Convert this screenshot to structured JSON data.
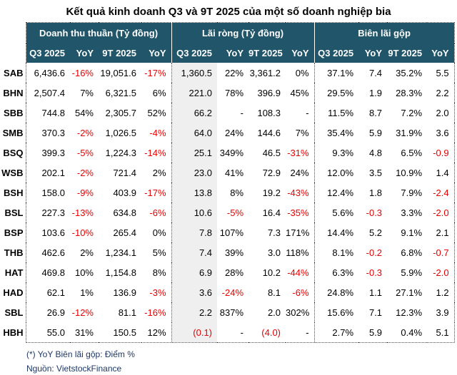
{
  "title": "Kết quả kinh doanh Q3 và 9T 2025 của một số doanh nghiệp bia",
  "footnote": "(*) YoY Biên lãi gộp: Điểm %",
  "source": "Nguồn: VietstockFinance",
  "colors": {
    "header_bg": "#215569",
    "header_text": "#ffffff",
    "negative_text": "#e80000",
    "shaded_column_bg": "#efefef",
    "footer_text": "#1f3864",
    "border_dotted": "#4a4a4a"
  },
  "chart_data": {
    "type": "table",
    "title": "Kết quả kinh doanh Q3 và 9T 2025 của một số doanh nghiệp bia",
    "column_groups": [
      {
        "label": "Doanh thu thuần (Tỷ đồng)"
      },
      {
        "label": "Lãi ròng (Tỷ đồng)"
      },
      {
        "label": "Biên lãi gộp"
      }
    ],
    "sub_columns": [
      "Q3 2025",
      "YoY",
      "9T 2025",
      "YoY"
    ],
    "rows": [
      {
        "ticker": "SAB",
        "cells": [
          "6,436.6",
          "-16%",
          "19,051.6",
          "-17%",
          "1,360.5",
          "22%",
          "3,361.2",
          "0%",
          "37.1%",
          "7.4",
          "35.2%",
          "5.5"
        ]
      },
      {
        "ticker": "BHN",
        "cells": [
          "2,507.4",
          "7%",
          "6,321.5",
          "6%",
          "221.0",
          "78%",
          "396.9",
          "45%",
          "29.5%",
          "1.9",
          "28.3%",
          "2.2"
        ]
      },
      {
        "ticker": "SBB",
        "cells": [
          "744.8",
          "54%",
          "2,305.7",
          "52%",
          "66.2",
          "-",
          "108.3",
          "-",
          "11.5%",
          "8.7",
          "7.2%",
          "2.0"
        ]
      },
      {
        "ticker": "SMB",
        "cells": [
          "370.3",
          "-2%",
          "1,026.5",
          "-4%",
          "64.0",
          "24%",
          "144.6",
          "7%",
          "35.4%",
          "5.9",
          "31.9%",
          "3.6"
        ]
      },
      {
        "ticker": "BSQ",
        "cells": [
          "399.3",
          "-5%",
          "1,224.3",
          "-14%",
          "25.1",
          "349%",
          "46.5",
          "-31%",
          "9.3%",
          "4.8",
          "6.5%",
          "-0.9"
        ]
      },
      {
        "ticker": "WSB",
        "cells": [
          "202.1",
          "-2%",
          "721.4",
          "2%",
          "23.0",
          "41%",
          "72.9",
          "24%",
          "12.0%",
          "3.5",
          "10.9%",
          "1.4"
        ]
      },
      {
        "ticker": "BSH",
        "cells": [
          "158.0",
          "-9%",
          "403.9",
          "-17%",
          "13.8",
          "8%",
          "19.2",
          "-43%",
          "12.4%",
          "1.8",
          "7.9%",
          "-2.4"
        ]
      },
      {
        "ticker": "BSL",
        "cells": [
          "227.3",
          "-13%",
          "634.8",
          "-6%",
          "10.6",
          "-5%",
          "16.4",
          "-35%",
          "5.6%",
          "-0.3",
          "3.3%",
          "-2.0"
        ]
      },
      {
        "ticker": "BSP",
        "cells": [
          "103.6",
          "-10%",
          "265.4",
          "0%",
          "7.8",
          "107%",
          "7.3",
          "171%",
          "14.4%",
          "5.2",
          "9.1%",
          "2.1"
        ]
      },
      {
        "ticker": "THB",
        "cells": [
          "462.6",
          "2%",
          "1,234.1",
          "5%",
          "7.4",
          "39%",
          "3.0",
          "118%",
          "8.1%",
          "-0.2",
          "6.8%",
          "-0.7"
        ]
      },
      {
        "ticker": "HAT",
        "cells": [
          "469.8",
          "10%",
          "1,154.8",
          "8%",
          "6.9",
          "28%",
          "10.2",
          "-44%",
          "6.3%",
          "-0.3",
          "5.9%",
          "-2.0"
        ]
      },
      {
        "ticker": "HAD",
        "cells": [
          "62.1",
          "1%",
          "136.9",
          "-3%",
          "3.6",
          "-24%",
          "8.1",
          "-6%",
          "24.8%",
          "1.1",
          "27.1%",
          "1.2"
        ]
      },
      {
        "ticker": "SBL",
        "cells": [
          "26.9",
          "-12%",
          "81.1",
          "-16%",
          "2.2",
          "837%",
          "2.0",
          "302%",
          "15.6%",
          "7.1",
          "12.3%",
          "3.9"
        ]
      },
      {
        "ticker": "HBH",
        "cells": [
          "55.0",
          "31%",
          "150.5",
          "12%",
          "(0.1)",
          "-",
          "(4.0)",
          "-",
          "2.7%",
          "5.9",
          "0.4%",
          "5.1"
        ]
      }
    ]
  }
}
